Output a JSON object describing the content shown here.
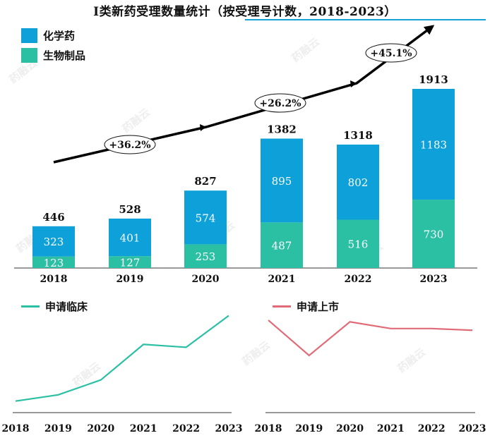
{
  "title": "I类新药受理数量统计（按受理号计数，2018-2023）",
  "colors": {
    "chem": "#0ea0d8",
    "bio": "#2bbfa4",
    "trial_line": "#2bbfa4",
    "market_line": "#e06b77",
    "rule": "#12a4d9",
    "arrow": "#000000"
  },
  "legend": [
    {
      "label": "化学药",
      "color": "#0ea0d8"
    },
    {
      "label": "生物制品",
      "color": "#2bbfa4"
    }
  ],
  "watermark": "药融云",
  "chart_data": [
    {
      "type": "bar",
      "stacked": true,
      "categories": [
        "2018",
        "2019",
        "2020",
        "2021",
        "2022",
        "2023"
      ],
      "series": [
        {
          "name": "生物制品",
          "values": [
            123,
            127,
            253,
            487,
            516,
            730
          ]
        },
        {
          "name": "化学药",
          "values": [
            323,
            401,
            574,
            895,
            802,
            1183
          ]
        }
      ],
      "totals": [
        446,
        528,
        827,
        1382,
        1318,
        1913
      ],
      "annotations": [
        "+36.2%",
        "+26.2%",
        "+45.1%"
      ],
      "ylim": [
        0,
        2000
      ],
      "legend_position": "top-left"
    },
    {
      "type": "line",
      "series": [
        {
          "name": "申请临床",
          "values": [
            120,
            185,
            340,
            710,
            680,
            1010
          ]
        }
      ],
      "x": [
        "2018",
        "2019",
        "2020",
        "2021",
        "2022",
        "2023"
      ],
      "ylim": [
        0,
        1050
      ]
    },
    {
      "type": "line",
      "series": [
        {
          "name": "申请上市",
          "values": [
            55,
            34,
            54,
            50,
            50,
            49
          ]
        }
      ],
      "x": [
        "2018",
        "2019",
        "2020",
        "2021",
        "2022",
        "2023"
      ],
      "ylim": [
        0,
        60
      ]
    }
  ]
}
